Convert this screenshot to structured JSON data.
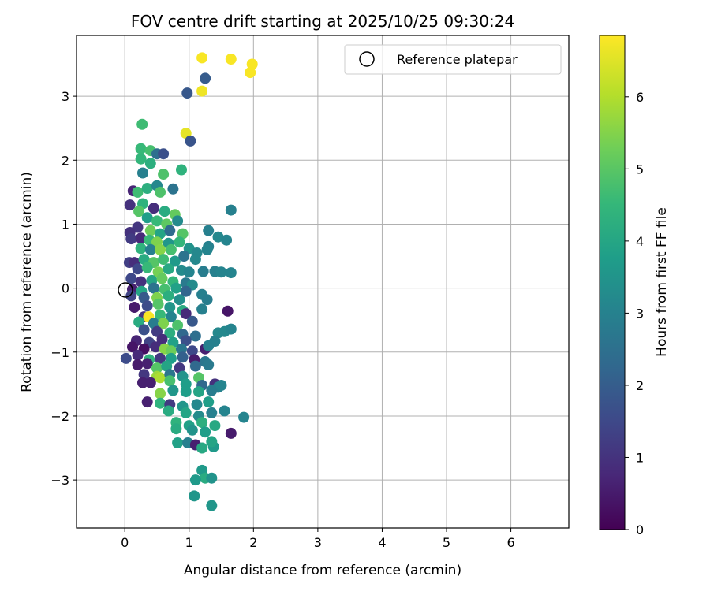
{
  "chart_data": {
    "type": "scatter",
    "title": "FOV centre drift starting at 2025/10/25 09:30:24",
    "xlabel": "Angular distance from reference (arcmin)",
    "ylabel": "Rotation from reference (arcmin)",
    "xlim": [
      -0.75,
      6.9
    ],
    "ylim": [
      -3.75,
      3.95
    ],
    "xticks": [
      0,
      1,
      2,
      3,
      4,
      5,
      6
    ],
    "yticks": [
      -3,
      -2,
      -1,
      0,
      1,
      2,
      3
    ],
    "xtick_labels": [
      "0",
      "1",
      "2",
      "3",
      "4",
      "5",
      "6"
    ],
    "ytick_labels": [
      "−3",
      "−2",
      "−1",
      "0",
      "1",
      "2",
      "3"
    ],
    "grid": true,
    "legend": {
      "position": "top-right",
      "entries": [
        "Reference platepar"
      ]
    },
    "reference_point": {
      "x": 0,
      "y": 0,
      "label": "Reference platepar"
    },
    "colorbar": {
      "label": "Hours from first FF file",
      "min": 0,
      "max": 6.85,
      "ticks": [
        0,
        1,
        2,
        3,
        4,
        5,
        6
      ],
      "tick_labels": [
        "0",
        "1",
        "2",
        "3",
        "4",
        "5",
        "6"
      ],
      "colormap": [
        "#440154",
        "#482878",
        "#3e4989",
        "#31688e",
        "#26828e",
        "#1f9e89",
        "#35b779",
        "#6ece58",
        "#b5de2b",
        "#fde725"
      ]
    },
    "series": [
      {
        "name": "FOV centre drift",
        "points": [
          [
            1.2,
            3.6,
            6.8
          ],
          [
            1.65,
            3.58,
            6.8
          ],
          [
            1.98,
            3.5,
            6.8
          ],
          [
            1.95,
            3.37,
            6.8
          ],
          [
            1.2,
            3.08,
            6.7
          ],
          [
            0.95,
            2.42,
            6.6
          ],
          [
            1.25,
            3.28,
            2.0
          ],
          [
            0.97,
            3.05,
            1.9
          ],
          [
            1.02,
            2.3,
            1.8
          ],
          [
            0.27,
            2.56,
            4.7
          ],
          [
            0.25,
            2.18,
            4.6
          ],
          [
            0.4,
            2.15,
            4.8
          ],
          [
            0.5,
            2.1,
            2.5
          ],
          [
            0.6,
            2.1,
            1.7
          ],
          [
            0.25,
            2.02,
            4.5
          ],
          [
            0.4,
            1.95,
            4.3
          ],
          [
            0.28,
            1.8,
            3.0
          ],
          [
            0.6,
            1.78,
            4.9
          ],
          [
            0.88,
            1.85,
            4.4
          ],
          [
            0.13,
            1.52,
            0.7
          ],
          [
            0.2,
            1.5,
            4.7
          ],
          [
            0.35,
            1.56,
            4.3
          ],
          [
            0.5,
            1.6,
            3.2
          ],
          [
            0.55,
            1.5,
            4.9
          ],
          [
            0.75,
            1.55,
            2.6
          ],
          [
            0.08,
            1.3,
            1.0
          ],
          [
            0.28,
            1.32,
            4.4
          ],
          [
            0.22,
            1.2,
            5.0
          ],
          [
            0.45,
            1.25,
            0.9
          ],
          [
            0.62,
            1.2,
            4.2
          ],
          [
            0.78,
            1.15,
            5.2
          ],
          [
            0.35,
            1.1,
            3.8
          ],
          [
            0.5,
            1.05,
            4.6
          ],
          [
            0.65,
            1.0,
            5.1
          ],
          [
            0.82,
            1.05,
            3.3
          ],
          [
            0.2,
            0.95,
            1.1
          ],
          [
            0.4,
            0.9,
            5.3
          ],
          [
            0.55,
            0.85,
            4.0
          ],
          [
            0.7,
            0.9,
            2.4
          ],
          [
            0.9,
            0.85,
            5.0
          ],
          [
            0.08,
            0.87,
            1.0
          ],
          [
            0.1,
            0.77,
            1.2
          ],
          [
            0.25,
            0.78,
            0.8
          ],
          [
            0.38,
            0.75,
            4.6
          ],
          [
            0.5,
            0.72,
            5.5
          ],
          [
            0.68,
            0.7,
            3.6
          ],
          [
            0.85,
            0.72,
            4.5
          ],
          [
            0.25,
            0.62,
            4.4
          ],
          [
            0.4,
            0.6,
            3.0
          ],
          [
            0.55,
            0.6,
            5.6
          ],
          [
            0.72,
            0.6,
            4.8
          ],
          [
            1.0,
            0.62,
            3.5
          ],
          [
            1.12,
            0.55,
            3.2
          ],
          [
            1.3,
            0.9,
            3.0
          ],
          [
            1.45,
            0.8,
            3.2
          ],
          [
            1.58,
            0.75,
            3.1
          ],
          [
            1.65,
            1.22,
            3.0
          ],
          [
            1.3,
            0.65,
            3.0
          ],
          [
            1.28,
            0.6,
            3.1
          ],
          [
            0.07,
            0.4,
            1.3
          ],
          [
            0.15,
            0.4,
            0.9
          ],
          [
            0.3,
            0.45,
            4.2
          ],
          [
            0.45,
            0.4,
            5.0
          ],
          [
            0.6,
            0.45,
            4.7
          ],
          [
            0.78,
            0.42,
            3.7
          ],
          [
            0.92,
            0.5,
            2.6
          ],
          [
            1.1,
            0.45,
            3.2
          ],
          [
            0.2,
            0.3,
            1.5
          ],
          [
            0.35,
            0.32,
            4.6
          ],
          [
            0.52,
            0.25,
            5.4
          ],
          [
            0.68,
            0.3,
            4.1
          ],
          [
            0.88,
            0.28,
            3.3
          ],
          [
            1.0,
            0.25,
            3.1
          ],
          [
            1.4,
            0.26,
            3.0
          ],
          [
            1.5,
            0.25,
            3.1
          ],
          [
            1.65,
            0.24,
            3.1
          ],
          [
            1.22,
            0.26,
            2.9
          ],
          [
            0.1,
            0.15,
            1.5
          ],
          [
            0.25,
            0.1,
            1.0
          ],
          [
            0.42,
            0.12,
            4.0
          ],
          [
            0.58,
            0.15,
            5.2
          ],
          [
            0.75,
            0.1,
            4.5
          ],
          [
            0.95,
            0.08,
            2.8
          ],
          [
            1.05,
            0.05,
            3.3
          ],
          [
            0.12,
            -0.02,
            0.6
          ],
          [
            0.26,
            -0.05,
            4.0
          ],
          [
            0.45,
            0.0,
            2.6
          ],
          [
            0.62,
            -0.02,
            4.8
          ],
          [
            0.8,
            0.0,
            3.9
          ],
          [
            0.95,
            -0.05,
            2.2
          ],
          [
            0.1,
            -0.12,
            1.4
          ],
          [
            0.3,
            -0.15,
            1.9
          ],
          [
            0.5,
            -0.15,
            5.5
          ],
          [
            0.68,
            -0.12,
            4.3
          ],
          [
            0.85,
            -0.18,
            3.4
          ],
          [
            1.2,
            -0.1,
            3.0
          ],
          [
            1.28,
            -0.18,
            2.9
          ],
          [
            0.15,
            -0.3,
            0.5
          ],
          [
            0.35,
            -0.28,
            1.6
          ],
          [
            0.52,
            -0.25,
            5.0
          ],
          [
            0.7,
            -0.3,
            3.6
          ],
          [
            0.9,
            -0.35,
            4.2
          ],
          [
            1.2,
            -0.33,
            3.0
          ],
          [
            1.6,
            -0.36,
            0.4
          ],
          [
            0.3,
            -0.45,
            1.1
          ],
          [
            0.37,
            -0.45,
            6.8
          ],
          [
            0.55,
            -0.42,
            4.6
          ],
          [
            0.72,
            -0.45,
            3.1
          ],
          [
            0.95,
            -0.4,
            0.8
          ],
          [
            0.22,
            -0.53,
            4.2
          ],
          [
            0.45,
            -0.55,
            2.9
          ],
          [
            0.6,
            -0.55,
            5.5
          ],
          [
            0.82,
            -0.58,
            4.9
          ],
          [
            1.05,
            -0.52,
            1.9
          ],
          [
            1.45,
            -0.7,
            3.2
          ],
          [
            1.55,
            -0.68,
            3.2
          ],
          [
            1.65,
            -0.64,
            3.1
          ],
          [
            0.3,
            -0.65,
            1.7
          ],
          [
            0.5,
            -0.68,
            1.2
          ],
          [
            0.7,
            -0.7,
            4.3
          ],
          [
            0.9,
            -0.72,
            2.3
          ],
          [
            1.1,
            -0.75,
            2.5
          ],
          [
            0.18,
            -0.82,
            0.7
          ],
          [
            0.38,
            -0.85,
            1.4
          ],
          [
            0.58,
            -0.8,
            0.9
          ],
          [
            0.75,
            -0.85,
            3.9
          ],
          [
            0.95,
            -0.82,
            1.7
          ],
          [
            1.4,
            -0.83,
            3.0
          ],
          [
            0.12,
            -0.92,
            0.4
          ],
          [
            0.3,
            -0.95,
            0.3
          ],
          [
            0.48,
            -0.92,
            0.9
          ],
          [
            0.62,
            -0.95,
            5.6
          ],
          [
            0.72,
            -0.98,
            5.3
          ],
          [
            0.88,
            -0.95,
            2.7
          ],
          [
            1.05,
            -0.98,
            1.5
          ],
          [
            1.25,
            -0.95,
            0.6
          ],
          [
            1.3,
            -0.9,
            3.0
          ],
          [
            0.02,
            -1.1,
            1.6
          ],
          [
            0.2,
            -1.05,
            0.8
          ],
          [
            0.38,
            -1.12,
            4.4
          ],
          [
            0.55,
            -1.1,
            1.1
          ],
          [
            0.72,
            -1.1,
            3.8
          ],
          [
            0.9,
            -1.08,
            2.1
          ],
          [
            1.08,
            -1.12,
            0.5
          ],
          [
            1.25,
            -1.15,
            2.7
          ],
          [
            0.2,
            -1.2,
            0.5
          ],
          [
            0.35,
            -1.18,
            0.6
          ],
          [
            0.5,
            -1.25,
            5.0
          ],
          [
            0.65,
            -1.22,
            4.0
          ],
          [
            0.85,
            -1.25,
            1.1
          ],
          [
            1.1,
            -1.22,
            2.3
          ],
          [
            1.3,
            -1.2,
            2.8
          ],
          [
            0.3,
            -1.35,
            1.1
          ],
          [
            0.5,
            -1.38,
            5.8
          ],
          [
            0.55,
            -1.4,
            6.0
          ],
          [
            0.7,
            -1.35,
            2.7
          ],
          [
            0.9,
            -1.38,
            3.5
          ],
          [
            1.15,
            -1.4,
            5.0
          ],
          [
            1.4,
            -1.5,
            1.0
          ],
          [
            0.28,
            -1.48,
            0.6
          ],
          [
            0.4,
            -1.48,
            0.6
          ],
          [
            0.7,
            -1.45,
            4.8
          ],
          [
            0.95,
            -1.5,
            3.8
          ],
          [
            1.2,
            -1.52,
            2.3
          ],
          [
            1.45,
            -1.55,
            3.0
          ],
          [
            0.55,
            -1.65,
            5.6
          ],
          [
            0.75,
            -1.6,
            3.6
          ],
          [
            0.95,
            -1.62,
            3.8
          ],
          [
            1.15,
            -1.62,
            4.0
          ],
          [
            1.35,
            -1.6,
            2.9
          ],
          [
            1.5,
            -1.52,
            3.1
          ],
          [
            0.35,
            -1.78,
            0.6
          ],
          [
            0.55,
            -1.8,
            4.4
          ],
          [
            0.7,
            -1.82,
            1.2
          ],
          [
            0.9,
            -1.85,
            3.6
          ],
          [
            1.12,
            -1.82,
            3.2
          ],
          [
            1.3,
            -1.78,
            3.8
          ],
          [
            0.68,
            -1.92,
            4.2
          ],
          [
            0.95,
            -1.95,
            4.0
          ],
          [
            1.15,
            -2.0,
            3.3
          ],
          [
            1.35,
            -1.95,
            3.0
          ],
          [
            1.55,
            -1.92,
            3.1
          ],
          [
            1.85,
            -2.02,
            3.1
          ],
          [
            0.8,
            -2.1,
            4.4
          ],
          [
            1.0,
            -2.15,
            3.9
          ],
          [
            1.2,
            -2.1,
            4.3
          ],
          [
            1.4,
            -2.15,
            4.1
          ],
          [
            0.8,
            -2.2,
            4.2
          ],
          [
            1.05,
            -2.22,
            3.5
          ],
          [
            1.25,
            -2.25,
            3.8
          ],
          [
            1.65,
            -2.27,
            0.5
          ],
          [
            0.82,
            -2.42,
            3.9
          ],
          [
            0.98,
            -2.42,
            3.0
          ],
          [
            1.1,
            -2.45,
            0.6
          ],
          [
            1.2,
            -2.5,
            4.1
          ],
          [
            1.38,
            -2.48,
            3.7
          ],
          [
            1.35,
            -2.4,
            4.0
          ],
          [
            1.2,
            -2.85,
            3.7
          ],
          [
            1.25,
            -2.97,
            4.2
          ],
          [
            1.1,
            -3.0,
            3.7
          ],
          [
            1.35,
            -2.97,
            3.5
          ],
          [
            1.08,
            -3.25,
            3.6
          ],
          [
            1.35,
            -3.4,
            3.6
          ]
        ]
      }
    ]
  }
}
